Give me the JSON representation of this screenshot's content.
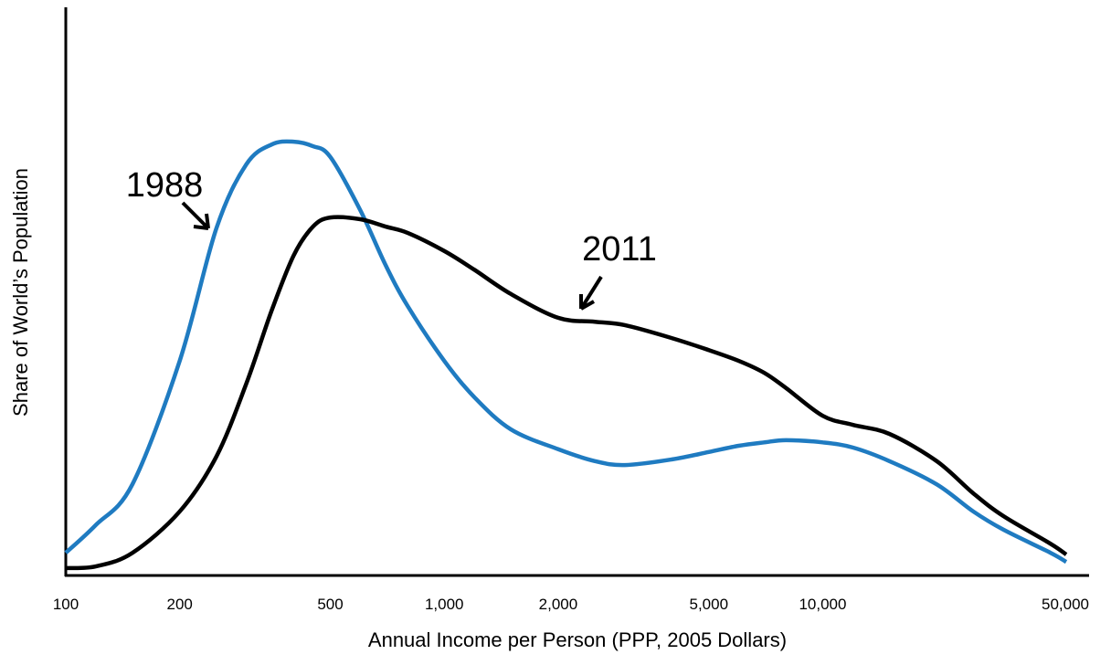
{
  "chart_data": {
    "type": "line",
    "x_label": "Annual Income per Person (PPP, 2005 Dollars)",
    "y_label": "Share of World’s Population",
    "x_log": true,
    "xlim": [
      100,
      50000
    ],
    "xticks": [
      100,
      200,
      500,
      {
        "value": 1000,
        "label": "1,000"
      },
      {
        "value": 2000,
        "label": "2,000"
      },
      {
        "value": 5000,
        "label": "5,000"
      },
      {
        "value": 10000,
        "label": "10,000"
      },
      {
        "value": 50000,
        "label": "50,000"
      }
    ],
    "ylim": [
      0,
      100
    ],
    "x": [
      100,
      120,
      150,
      200,
      250,
      300,
      350,
      400,
      450,
      500,
      600,
      700,
      800,
      1000,
      1200,
      1500,
      2000,
      2500,
      3000,
      4000,
      5000,
      6000,
      7000,
      8000,
      10000,
      12000,
      15000,
      20000,
      25000,
      30000,
      40000,
      44000
    ],
    "series": [
      {
        "name": "1988",
        "color": "#1f7bc1",
        "values": [
          4.0,
          8.9,
          16.1,
          37.9,
          61.3,
          72.6,
          76.1,
          76.6,
          75.8,
          73.9,
          64.5,
          54.8,
          47.6,
          37.9,
          31.5,
          25.8,
          22.3,
          20.2,
          19.5,
          20.5,
          21.8,
          22.9,
          23.5,
          23.9,
          23.5,
          22.6,
          20.2,
          16.1,
          11.3,
          8.1,
          4.0,
          2.4
        ]
      },
      {
        "name": "2011",
        "color": "#000000",
        "values": [
          1.3,
          1.6,
          4.0,
          11.3,
          21.0,
          33.9,
          46.8,
          56.5,
          61.6,
          63.2,
          62.9,
          61.6,
          60.5,
          57.3,
          54.0,
          49.7,
          45.5,
          44.8,
          44.2,
          41.9,
          39.8,
          37.9,
          35.8,
          33.1,
          28.2,
          26.6,
          25.0,
          20.2,
          14.5,
          10.5,
          5.6,
          3.7
        ]
      }
    ]
  }
}
